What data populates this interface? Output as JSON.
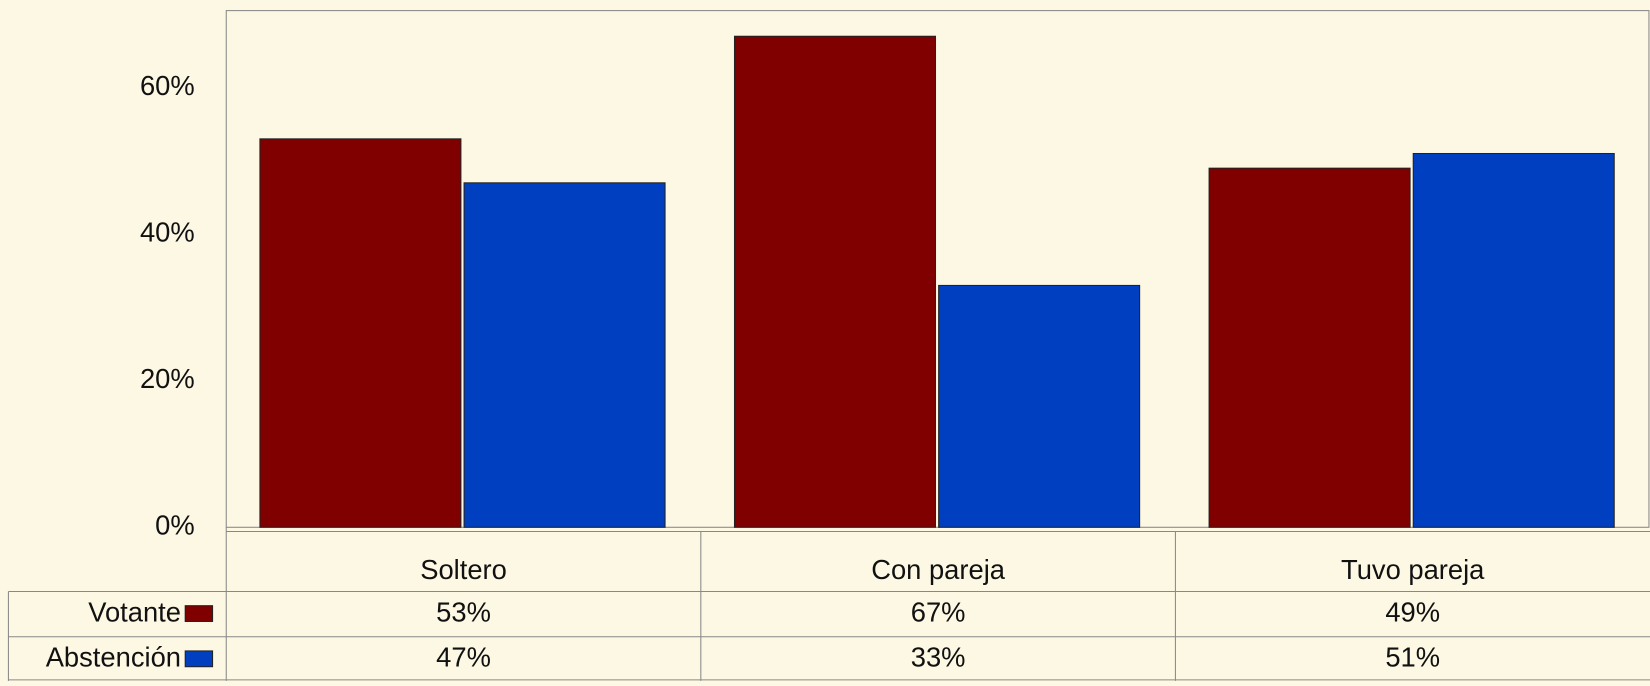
{
  "chart_data": {
    "type": "bar",
    "categories": [
      "Soltero",
      "Con pareja",
      "Tuvo pareja"
    ],
    "series": [
      {
        "name": "Votante",
        "color": "#800000",
        "values": [
          53,
          67,
          49
        ],
        "value_labels": [
          "53%",
          "67%",
          "49%"
        ]
      },
      {
        "name": "Abstención",
        "color": "#0040c0",
        "values": [
          47,
          33,
          51
        ],
        "value_labels": [
          "47%",
          "33%",
          "51%"
        ]
      }
    ],
    "ylim": [
      0,
      70.5
    ],
    "yticks": [
      {
        "value": 0,
        "label": "0%"
      },
      {
        "value": 20,
        "label": "20%"
      },
      {
        "value": 40,
        "label": "40%"
      },
      {
        "value": 60,
        "label": "60%"
      }
    ],
    "grid": false,
    "data_table": true
  }
}
